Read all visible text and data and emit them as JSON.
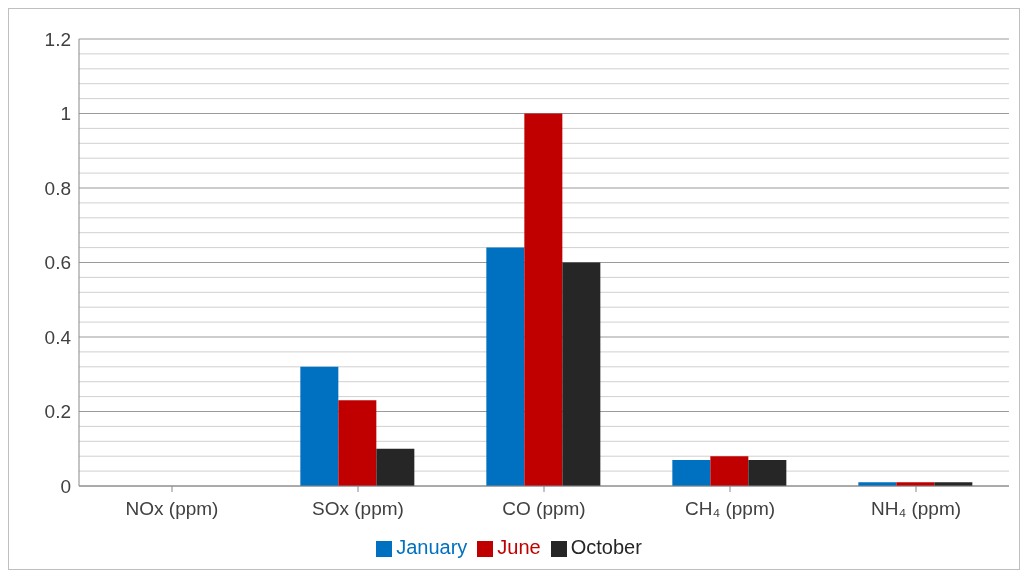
{
  "chart_data": {
    "type": "bar",
    "categories": [
      "NOx (ppm)",
      "SOx (ppm)",
      "CO (ppm)",
      "CH₄ (ppm)",
      "NH₄ (ppm)"
    ],
    "series": [
      {
        "name": "January",
        "color": "#0070c0",
        "values": [
          0,
          0.32,
          0.64,
          0.07,
          0.01
        ]
      },
      {
        "name": "June",
        "color": "#c00000",
        "values": [
          0,
          0.23,
          1.0,
          0.08,
          0.01
        ]
      },
      {
        "name": "October",
        "color": "#262626",
        "values": [
          0,
          0.1,
          0.6,
          0.07,
          0.01
        ]
      }
    ],
    "ylim": [
      0,
      1.2
    ],
    "yticks": [
      0,
      {
        "value": 0.04,
        "label": null
      },
      {
        "value": 0.08,
        "label": null
      },
      {
        "value": 0.12,
        "label": null
      },
      {
        "value": 0.16,
        "label": null
      },
      0.2,
      {
        "value": 0.24,
        "label": null
      },
      {
        "value": 0.28,
        "label": null
      },
      {
        "value": 0.32,
        "label": null
      },
      {
        "value": 0.36,
        "label": null
      },
      0.4,
      {
        "value": 0.44,
        "label": null
      },
      {
        "value": 0.48,
        "label": null
      },
      {
        "value": 0.52,
        "label": null
      },
      {
        "value": 0.56,
        "label": null
      },
      0.6,
      {
        "value": 0.64,
        "label": null
      },
      {
        "value": 0.68,
        "label": null
      },
      {
        "value": 0.72,
        "label": null
      },
      {
        "value": 0.76,
        "label": null
      },
      0.8,
      {
        "value": 0.84,
        "label": null
      },
      {
        "value": 0.88,
        "label": null
      },
      {
        "value": 0.92,
        "label": null
      },
      {
        "value": 0.96,
        "label": null
      },
      1,
      {
        "value": 1.04,
        "label": null
      },
      {
        "value": 1.08,
        "label": null
      },
      {
        "value": 1.12,
        "label": null
      },
      {
        "value": 1.16,
        "label": null
      },
      1.2
    ],
    "grid": "y",
    "legend": "bottom"
  }
}
